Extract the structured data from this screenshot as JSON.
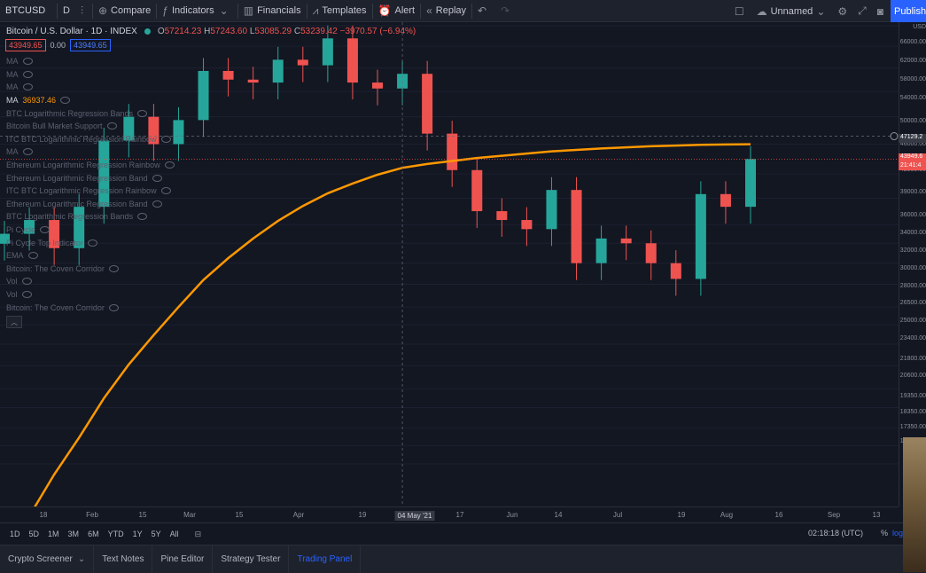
{
  "toolbar": {
    "symbol": "BTCUSD",
    "interval": "D",
    "compare": "Compare",
    "indicators": "Indicators",
    "financials": "Financials",
    "templates": "Templates",
    "alert": "Alert",
    "replay": "Replay",
    "layout_name": "Unnamed",
    "publish": "Publish"
  },
  "legend": {
    "title": "Bitcoin / U.S. Dollar · 1D · INDEX",
    "o": "57214.23",
    "h": "57243.60",
    "l": "53085.29",
    "c": "53239.42",
    "change": "−3970.57 (−6.94%)",
    "sell_price": "43949.65",
    "spread": "0.00",
    "buy_price": "43949.65"
  },
  "indicators": [
    {
      "name": "MA"
    },
    {
      "name": "MA"
    },
    {
      "name": "MA"
    },
    {
      "name": "MA",
      "value": "36937.46",
      "active": true
    },
    {
      "name": "BTC Logarithmic Regression Bands"
    },
    {
      "name": "Bitcoin Bull Market Support"
    },
    {
      "name": "ITC BTC Logarithmic Regression Rainbow"
    },
    {
      "name": "MA"
    },
    {
      "name": "Ethereum Logarithmic Regression Rainbow"
    },
    {
      "name": "Ethereum Logarithmic Regression Band"
    },
    {
      "name": "ITC BTC Logarithmic Regression Rainbow"
    },
    {
      "name": "Ethereum Logarithmic Regression Band"
    },
    {
      "name": "BTC Logarithmic Regression Bands"
    },
    {
      "name": "Pi Cycle"
    },
    {
      "name": "Pi Cycle Top Indicator"
    },
    {
      "name": "EMA"
    },
    {
      "name": "Bitcoin: The Coven Corridor"
    },
    {
      "name": "Vol"
    },
    {
      "name": "Vol"
    },
    {
      "name": "Bitcoin: The Coven Corridor"
    }
  ],
  "price_axis": [
    "66000.00",
    "62000.00",
    "58000.00",
    "54000.00",
    "50000.00",
    "46000.00",
    "42000.00",
    "39000.00",
    "36000.00",
    "34000.00",
    "32000.00",
    "30000.00",
    "28000.00",
    "26500.00",
    "25000.00",
    "23400.00",
    "21800.00",
    "20600.00",
    "19350.00",
    "18350.00",
    "17350.00",
    "16350.00"
  ],
  "price_tags": {
    "usd": "USD",
    "crosshair": "47129.2",
    "last": "43949.6",
    "countdown": "21:41:4"
  },
  "time_axis": [
    "18",
    "Feb",
    "15",
    "Mar",
    "15",
    "Apr",
    "19",
    "04 May '21",
    "17",
    "Jun",
    "14",
    "Jul",
    "19",
    "Aug",
    "16",
    "Sep",
    "13"
  ],
  "ranges": [
    "1D",
    "5D",
    "1M",
    "3M",
    "6M",
    "YTD",
    "1Y",
    "5Y",
    "All"
  ],
  "clock": "02:18:18 (UTC)",
  "pct_btn": "%",
  "log_btn": "log",
  "bottom_tabs": [
    "Crypto Screener",
    "Text Notes",
    "Pine Editor",
    "Strategy Tester",
    "Trading Panel"
  ],
  "colors": {
    "up": "#26a69a",
    "down": "#ef5350",
    "ma": "#ff9800",
    "background": "#131722",
    "accent": "#2962ff"
  },
  "chart_data": {
    "type": "candlestick",
    "symbol": "BTCUSD",
    "dates": [
      "2021-01-10",
      "2021-01-18",
      "2021-01-27",
      "2021-02-01",
      "2021-02-08",
      "2021-02-15",
      "2021-02-21",
      "2021-03-01",
      "2021-03-08",
      "2021-03-15",
      "2021-03-22",
      "2021-03-29",
      "2021-04-05",
      "2021-04-13",
      "2021-04-19",
      "2021-04-26",
      "2021-05-04",
      "2021-05-10",
      "2021-05-17",
      "2021-05-24",
      "2021-06-01",
      "2021-06-08",
      "2021-06-14",
      "2021-06-21",
      "2021-06-28",
      "2021-07-05",
      "2021-07-12",
      "2021-07-19",
      "2021-07-26",
      "2021-08-02",
      "2021-08-09"
    ],
    "close": [
      35000,
      36500,
      33500,
      38000,
      46500,
      50000,
      46000,
      49500,
      57500,
      56000,
      55500,
      59500,
      58500,
      63500,
      55500,
      54500,
      57000,
      47500,
      42500,
      37500,
      36500,
      35500,
      40000,
      32000,
      34500,
      34000,
      32000,
      30500,
      39500,
      38000,
      43950
    ],
    "ma_series": [
      13000,
      14800,
      16800,
      18800,
      21200,
      23500,
      25700,
      28000,
      30400,
      32500,
      34500,
      36400,
      38100,
      39600,
      40800,
      41900,
      42800,
      43300,
      43700,
      44100,
      44400,
      44700,
      45000,
      45200,
      45400,
      45550,
      45700,
      45800,
      45900,
      45950,
      45990
    ],
    "last_close": 43949.65,
    "crosshair_date": "04 May '21",
    "crosshair_price": 47129.2,
    "ylim": [
      16350,
      66000
    ],
    "yscale": "log",
    "legend_placement": "top-left"
  }
}
